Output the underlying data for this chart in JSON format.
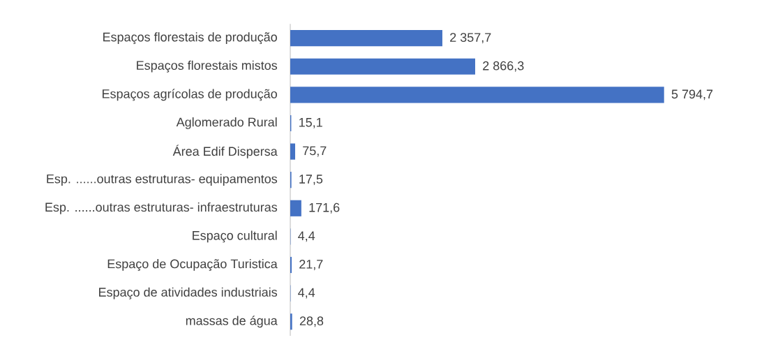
{
  "chart_data": {
    "type": "bar",
    "orientation": "horizontal",
    "categories": [
      "Espaços florestais de produção",
      "Espaços florestais mistos",
      "Espaços agrícolas de produção",
      "Aglomerado Rural",
      "Área Edif Dispersa",
      "Esp. ......outras estruturas- equipamentos",
      "Esp. ......outras estruturas- infraestruturas",
      "Espaço cultural",
      "Espaço de Ocupação Turistica",
      "Espaço de atividades industriais",
      "massas de água"
    ],
    "values": [
      2357.7,
      2866.3,
      5794.7,
      15.1,
      75.7,
      17.5,
      171.6,
      4.4,
      21.7,
      4.4,
      28.8
    ],
    "value_labels": [
      "2 357,7",
      "2 866,3",
      "5 794,7",
      "15,1",
      "75,7",
      "17,5",
      "171,6",
      "4,4",
      "21,7",
      "4,4",
      "28,8"
    ],
    "color": "#4472c4"
  }
}
